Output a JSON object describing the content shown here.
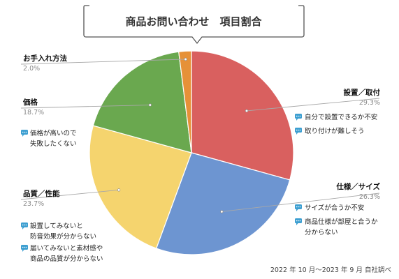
{
  "chart_data": {
    "type": "pie",
    "title": "商品お問い合わせ　項目割合",
    "source_note": "2022 年 10 月〜2023 年 9 月  自社調べ",
    "slices": [
      {
        "label": "設置／取付",
        "value": 29.3,
        "value_label": "29.3%",
        "color": "#d9605f",
        "comments": [
          [
            "自分で設置できるか不安"
          ],
          [
            "取り付けが難しそう"
          ]
        ]
      },
      {
        "label": "仕様／サイズ",
        "value": 26.3,
        "value_label": "26.3%",
        "color": "#6d95d1",
        "comments": [
          [
            "サイズが合うか不安"
          ],
          [
            "商品仕様が部屋と合うか",
            "分からない"
          ]
        ]
      },
      {
        "label": "品質／性能",
        "value": 23.7,
        "value_label": "23.7%",
        "color": "#f5d46e",
        "comments": [
          [
            "設置してみないと",
            "防音効果が分からない"
          ],
          [
            "届いてみないと素材感や",
            "商品の品質が分からない"
          ]
        ]
      },
      {
        "label": "価格",
        "value": 18.7,
        "value_label": "18.7%",
        "color": "#6aa84f",
        "comments": [
          [
            "価格が高いので",
            "失敗したくない"
          ]
        ]
      },
      {
        "label": "お手入れ方法",
        "value": 2.0,
        "value_label": "2.0%",
        "color": "#e69138",
        "comments": []
      }
    ],
    "comment_icon": "speech-bubble-icon",
    "comment_icon_color": "#3d9fd1"
  }
}
